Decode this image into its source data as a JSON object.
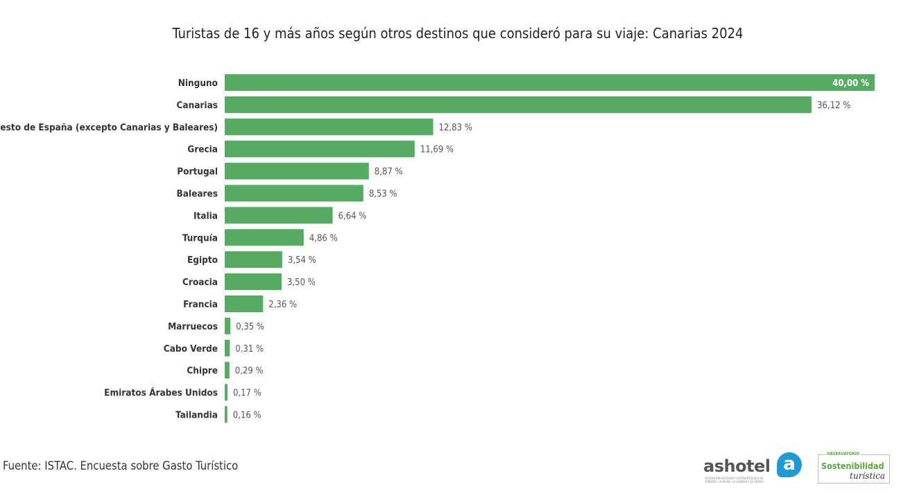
{
  "chart_data": {
    "type": "bar",
    "orientation": "horizontal",
    "title": "Turistas de 16 y más años según otros destinos que consideró para su viaje: Canarias 2024",
    "categories": [
      "Ninguno",
      "Canarias",
      "Resto de España (excepto Canarias y Baleares)",
      "Grecia",
      "Portugal",
      "Baleares",
      "Italia",
      "Turquía",
      "Egipto",
      "Croacia",
      "Francia",
      "Marruecos",
      "Cabo Verde",
      "Chipre",
      "Emiratos Árabes Unidos",
      "Tailandia"
    ],
    "values": [
      40.0,
      36.12,
      12.83,
      11.69,
      8.87,
      8.53,
      6.64,
      4.86,
      3.54,
      3.5,
      2.36,
      0.35,
      0.31,
      0.29,
      0.17,
      0.16
    ],
    "value_labels": [
      "40,00 %",
      "36,12 %",
      "12,83 %",
      "11,69 %",
      "8,87 %",
      "8,53 %",
      "6,64 %",
      "4,86 %",
      "3,54 %",
      "3,50 %",
      "2,36 %",
      "0,35 %",
      "0,31 %",
      "0,29 %",
      "0,17 %",
      "0,16 %"
    ],
    "xlim": [
      0,
      40
    ],
    "grid": false,
    "bar_color": "#55ab62"
  },
  "source": "Fuente: ISTAC. Encuesta sobre Gasto Turístico",
  "logos": {
    "ashotel": "ashotel",
    "ashotel_letter": "a",
    "ashotel_subtitle": "ASOCIACIÓN HOTELERA Y EXTRAHOTELERA DE TENERIFE, LA PALMA, LA GOMERA Y EL HIERRO",
    "observatorio_top": "OBSERVATORIO",
    "observatorio_main": "Sostenibilidad",
    "observatorio_sub": "turística"
  }
}
